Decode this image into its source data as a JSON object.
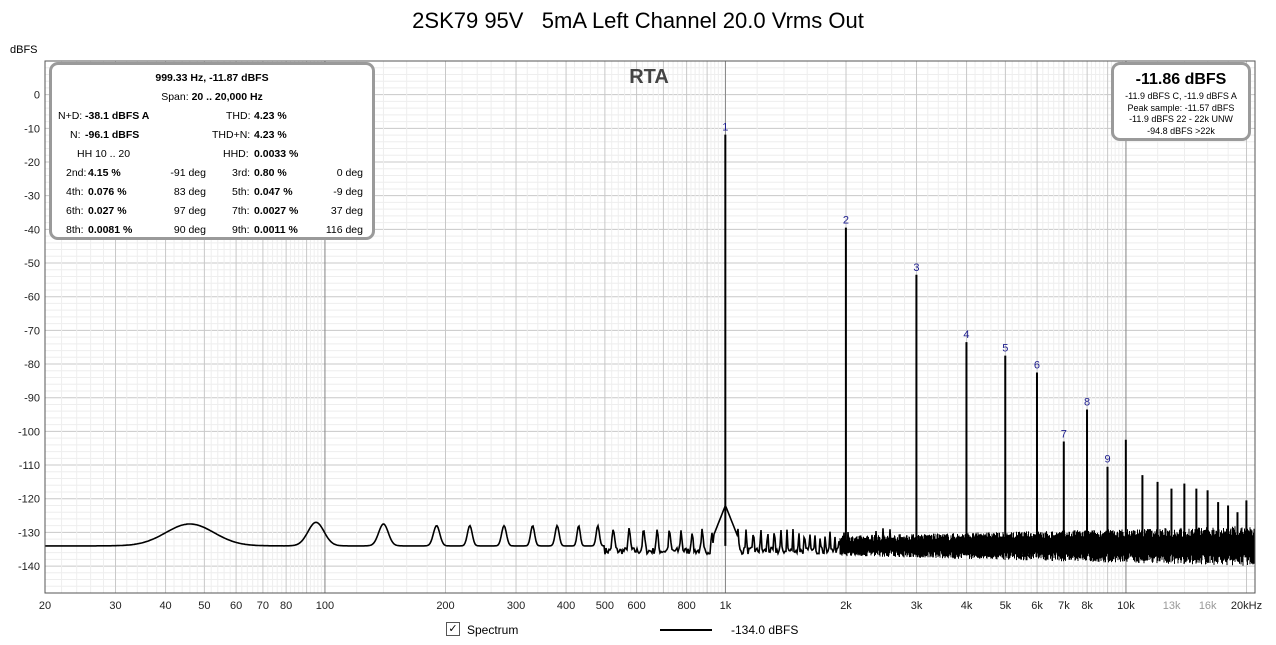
{
  "title": "2SK79 95V   5mA Left Channel 20.0 Vrms Out",
  "chart_data": {
    "type": "line",
    "title": "2SK79 95V   5mA Left Channel 20.0 Vrms Out",
    "subtitle": "RTA",
    "xlabel": "",
    "ylabel": "dBFS",
    "x_scale": "log",
    "xlim": [
      20,
      21000
    ],
    "ylim": [
      -148,
      10
    ],
    "grid": true,
    "x_major_ticks": [
      {
        "v": 20,
        "label": "20"
      },
      {
        "v": 30,
        "label": "30"
      },
      {
        "v": 40,
        "label": "40"
      },
      {
        "v": 50,
        "label": "50"
      },
      {
        "v": 60,
        "label": "60"
      },
      {
        "v": 70,
        "label": "70"
      },
      {
        "v": 80,
        "label": "80"
      },
      {
        "v": 100,
        "label": "100"
      },
      {
        "v": 200,
        "label": "200"
      },
      {
        "v": 300,
        "label": "300"
      },
      {
        "v": 400,
        "label": "400"
      },
      {
        "v": 500,
        "label": "500"
      },
      {
        "v": 600,
        "label": "600"
      },
      {
        "v": 800,
        "label": "800"
      },
      {
        "v": 1000,
        "label": "1k"
      },
      {
        "v": 2000,
        "label": "2k"
      },
      {
        "v": 3000,
        "label": "3k"
      },
      {
        "v": 4000,
        "label": "4k"
      },
      {
        "v": 5000,
        "label": "5k"
      },
      {
        "v": 6000,
        "label": "6k"
      },
      {
        "v": 7000,
        "label": "7k"
      },
      {
        "v": 8000,
        "label": "8k"
      },
      {
        "v": 10000,
        "label": "10k"
      }
    ],
    "x_minor_label_ticks": [
      {
        "v": 13000,
        "label": "13k"
      },
      {
        "v": 16000,
        "label": "16k"
      },
      {
        "v": 20000,
        "label": "20kHz"
      }
    ],
    "y_ticks": [
      0,
      -10,
      -20,
      -30,
      -40,
      -50,
      -60,
      -70,
      -80,
      -90,
      -100,
      -110,
      -120,
      -130,
      -140
    ],
    "harmonics": [
      {
        "n": "1",
        "freq": 999.33,
        "db": -11.87
      },
      {
        "n": "2",
        "freq": 1998.7,
        "db": -39.5
      },
      {
        "n": "3",
        "freq": 2998,
        "db": -53.5
      },
      {
        "n": "4",
        "freq": 3997.3,
        "db": -73.5
      },
      {
        "n": "5",
        "freq": 4996.7,
        "db": -77.5
      },
      {
        "n": "6",
        "freq": 5996,
        "db": -82.5
      },
      {
        "n": "7",
        "freq": 6995.3,
        "db": -103
      },
      {
        "n": "8",
        "freq": 7994.6,
        "db": -93.5
      },
      {
        "n": "9",
        "freq": 8994,
        "db": -110.5
      },
      {
        "n": "",
        "freq": 9993.3,
        "db": -102.5
      },
      {
        "n": "",
        "freq": 10992.6,
        "db": -113
      },
      {
        "n": "",
        "freq": 11992,
        "db": -115
      },
      {
        "n": "",
        "freq": 12991.3,
        "db": -117
      },
      {
        "n": "",
        "freq": 13990.6,
        "db": -115.5
      },
      {
        "n": "",
        "freq": 14990,
        "db": -117
      },
      {
        "n": "",
        "freq": 15989.3,
        "db": -117.5
      },
      {
        "n": "",
        "freq": 16988.6,
        "db": -121
      },
      {
        "n": "",
        "freq": 17988,
        "db": -122
      },
      {
        "n": "",
        "freq": 18987.3,
        "db": -124
      },
      {
        "n": "",
        "freq": 19986.6,
        "db": -120.5
      }
    ],
    "low_freq_bumps": [
      {
        "f": 46,
        "db": -127.5,
        "w": 0.06
      },
      {
        "f": 95,
        "db": -127,
        "w": 0.02
      },
      {
        "f": 140,
        "db": -127.5,
        "w": 0.012
      },
      {
        "f": 190,
        "db": -128,
        "w": 0.008
      },
      {
        "f": 230,
        "db": -128,
        "w": 0.006
      },
      {
        "f": 280,
        "db": -128,
        "w": 0.006
      },
      {
        "f": 330,
        "db": -128,
        "w": 0.005
      },
      {
        "f": 380,
        "db": -128,
        "w": 0.005
      },
      {
        "f": 430,
        "db": -128,
        "w": 0.004
      },
      {
        "f": 480,
        "db": -128,
        "w": 0.004
      }
    ],
    "noise_floor_db": -134,
    "series": [
      {
        "name": "Spectrum",
        "level_label": "-134.0 dBFS",
        "color": "#000000"
      }
    ]
  },
  "stats_panel": {
    "header": "999.33 Hz, -11.87 dBFS",
    "span_label": "Span:",
    "span_value": "20 .. 20,000 Hz",
    "nd_label": "N+D:",
    "nd_value": "-38.1 dBFS A",
    "thd_label": "THD:",
    "thd_value": "4.23 %",
    "n_label": "N:",
    "n_value": "-96.1 dBFS",
    "thdn_label": "THD+N:",
    "thdn_value": "4.23 %",
    "hh_label": "HH 10 .. 20",
    "hhd_label": "HHD:",
    "hhd_value": "0.0033 %",
    "rows": [
      {
        "l1": "2nd:",
        "v1": "4.15 %",
        "d1": "-91 deg",
        "l2": "3rd:",
        "v2": "0.80 %",
        "d2": "0 deg"
      },
      {
        "l1": "4th:",
        "v1": "0.076 %",
        "d1": "83 deg",
        "l2": "5th:",
        "v2": "0.047 %",
        "d2": "-9 deg"
      },
      {
        "l1": "6th:",
        "v1": "0.027 %",
        "d1": "97 deg",
        "l2": "7th:",
        "v2": "0.0027 %",
        "d2": "37 deg"
      },
      {
        "l1": "8th:",
        "v1": "0.0081 %",
        "d1": "90 deg",
        "l2": "9th:",
        "v2": "0.0011 %",
        "d2": "116 deg"
      }
    ]
  },
  "level_panel": {
    "main": "-11.86 dBFS",
    "line1": "-11.9 dBFS C, -11.9 dBFS A",
    "line2": "Peak sample: -11.57 dBFS",
    "line3": "-11.9 dBFS 22 - 22k UNW",
    "line4": "-94.8 dBFS >22k"
  },
  "legend": {
    "checkbox_checked": true,
    "checkmark": "✓",
    "label": "Spectrum",
    "value": "-134.0 dBFS"
  }
}
